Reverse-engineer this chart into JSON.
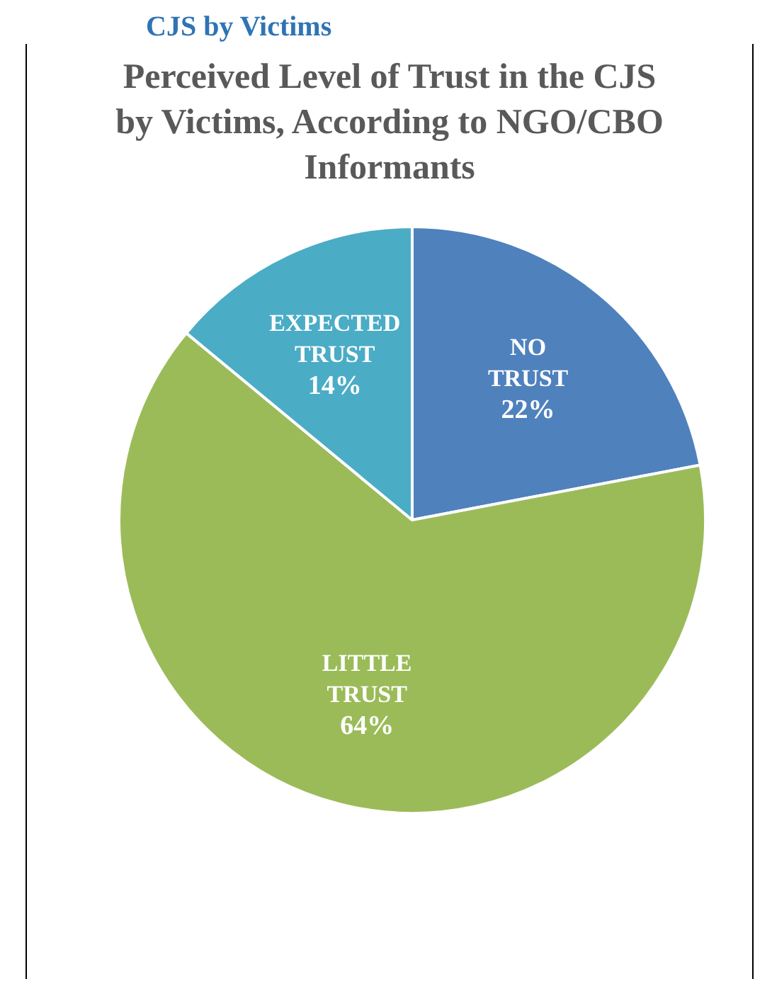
{
  "chart_data": {
    "type": "pie",
    "title": "Perceived Level of Trust in the CJS by Victims, According to NGO/CBO Informants",
    "annotations": [
      "CJS by Victims"
    ],
    "categories": [
      "NO TRUST",
      "LITTLE TRUST",
      "EXPECTED TRUST"
    ],
    "values": [
      22,
      64,
      14
    ],
    "colors": [
      "#4f81bd",
      "#9bbb59",
      "#4bacc6"
    ],
    "value_labels": [
      "22%",
      "64%",
      "14%"
    ],
    "legend": false
  }
}
